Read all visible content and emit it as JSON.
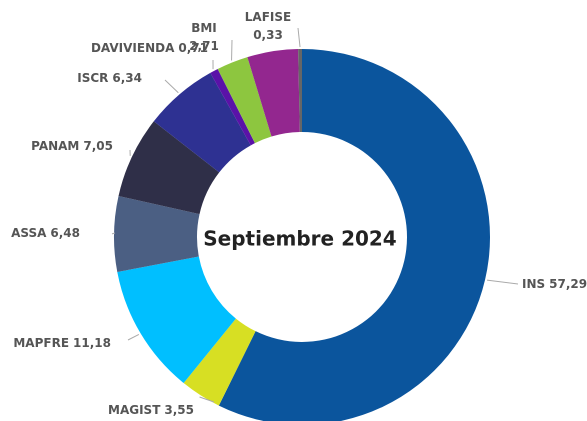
{
  "chart_data": {
    "type": "donut",
    "title": "Septiembre 2024",
    "categories": [
      "INS",
      "MAGIST",
      "MAPFRE",
      "ASSA",
      "PANAM",
      "ISCR",
      "DAVIVIENDA",
      "BMI",
      null,
      "LAFISE"
    ],
    "values": [
      57.29,
      3.55,
      11.18,
      6.48,
      7.05,
      6.34,
      0.71,
      2.71,
      4.36,
      0.33
    ],
    "value_labels": [
      "57,29",
      "3,55",
      "11,18",
      "6,48",
      "7,05",
      "6,34",
      "0,71",
      "2,71",
      null,
      "0,33"
    ],
    "colors": [
      "#0b559d",
      "#d7df23",
      "#00bfff",
      "#4b5f83",
      "#2f2f48",
      "#2e3192",
      "#5a12a8",
      "#8dc63f",
      "#93278f",
      "#666666"
    ]
  }
}
